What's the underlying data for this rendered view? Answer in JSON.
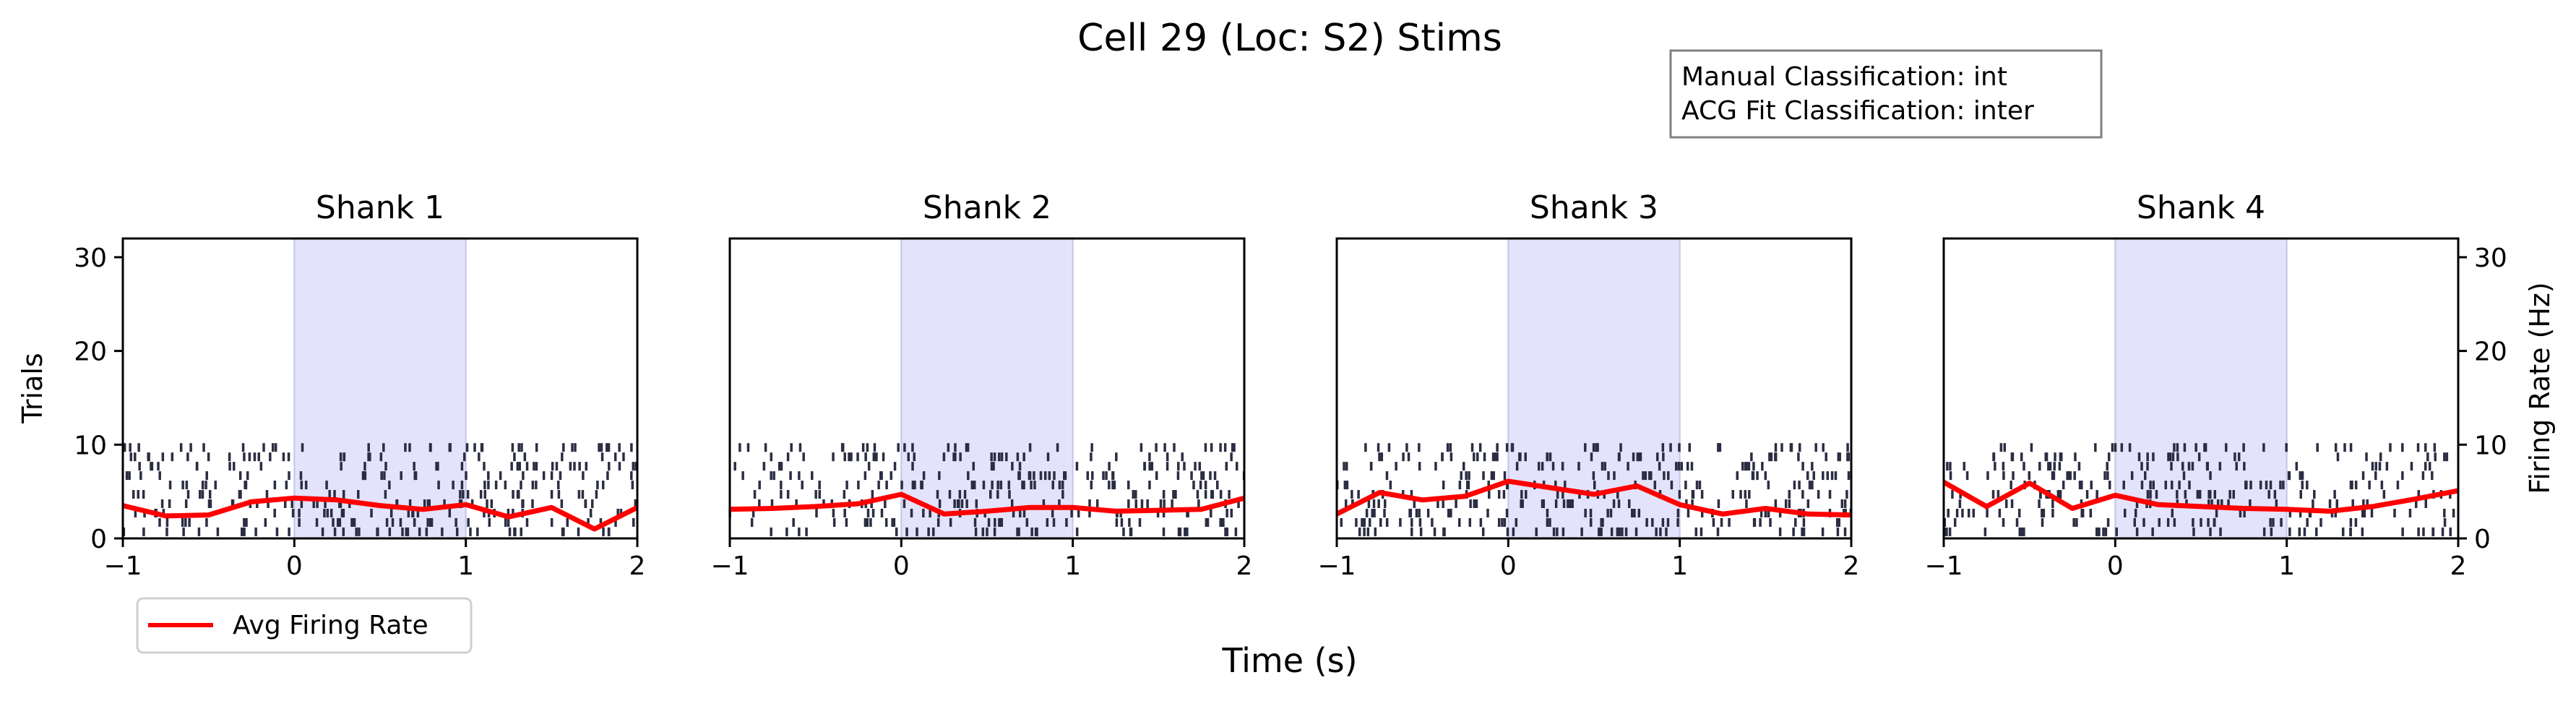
{
  "title": "Cell 29 (Loc: S2) Stims",
  "info_box": [
    "Manual Classification: int",
    "ACG Fit Classification: inter"
  ],
  "xlabel": "Time (s)",
  "ylabel_left": "Trials",
  "ylabel_right": "Firing Rate (Hz)",
  "legend": {
    "label": "Avg Firing Rate",
    "color": "#ff0000",
    "placement": "lower-left, below first panel"
  },
  "colors": {
    "stim_window": "#e3e3fb",
    "stim_edge": "#c4c4ee",
    "raster": "#2b2d42",
    "rate": "#ff0000"
  },
  "chart_data": {
    "type": "raster+line",
    "xlim": [
      -1,
      2
    ],
    "ylim": [
      0,
      32
    ],
    "xticks": [
      -1,
      0,
      1,
      2
    ],
    "yticks": [
      0,
      10,
      20,
      30
    ],
    "xtick_labels": [
      "−1",
      "0",
      "1",
      "2"
    ],
    "ytick_labels": [
      "0",
      "10",
      "20",
      "30"
    ],
    "stim_window": [
      0,
      1
    ],
    "n_trials": 10,
    "panels": [
      {
        "title": "Shank 1",
        "rate_x": [
          -1.0,
          -0.75,
          -0.5,
          -0.25,
          0.0,
          0.25,
          0.5,
          0.75,
          1.0,
          1.25,
          1.5,
          1.75,
          2.0
        ],
        "rate_y": [
          3.5,
          2.4,
          2.5,
          3.9,
          4.3,
          4.1,
          3.5,
          3.1,
          3.6,
          2.3,
          3.3,
          1.0,
          3.3
        ]
      },
      {
        "title": "Shank 2",
        "rate_x": [
          -1.0,
          -0.75,
          -0.5,
          -0.25,
          0.0,
          0.25,
          0.5,
          0.75,
          1.0,
          1.25,
          1.5,
          1.75,
          2.0
        ],
        "rate_y": [
          3.1,
          3.2,
          3.4,
          3.7,
          4.7,
          2.6,
          2.9,
          3.3,
          3.3,
          2.9,
          3.0,
          3.1,
          4.3
        ]
      },
      {
        "title": "Shank 3",
        "rate_x": [
          -1.0,
          -0.75,
          -0.5,
          -0.25,
          0.0,
          0.25,
          0.5,
          0.75,
          1.0,
          1.25,
          1.5,
          1.75,
          2.0
        ],
        "rate_y": [
          2.6,
          4.9,
          4.1,
          4.5,
          6.1,
          5.4,
          4.7,
          5.6,
          3.6,
          2.6,
          3.2,
          2.6,
          2.5
        ]
      },
      {
        "title": "Shank 4",
        "rate_x": [
          -1.0,
          -0.75,
          -0.5,
          -0.25,
          0.0,
          0.25,
          0.5,
          0.75,
          1.0,
          1.25,
          1.5,
          1.75,
          2.0
        ],
        "rate_y": [
          6.0,
          3.4,
          5.9,
          3.2,
          4.6,
          3.6,
          3.4,
          3.2,
          3.1,
          2.9,
          3.4,
          4.2,
          5.1
        ]
      }
    ]
  }
}
